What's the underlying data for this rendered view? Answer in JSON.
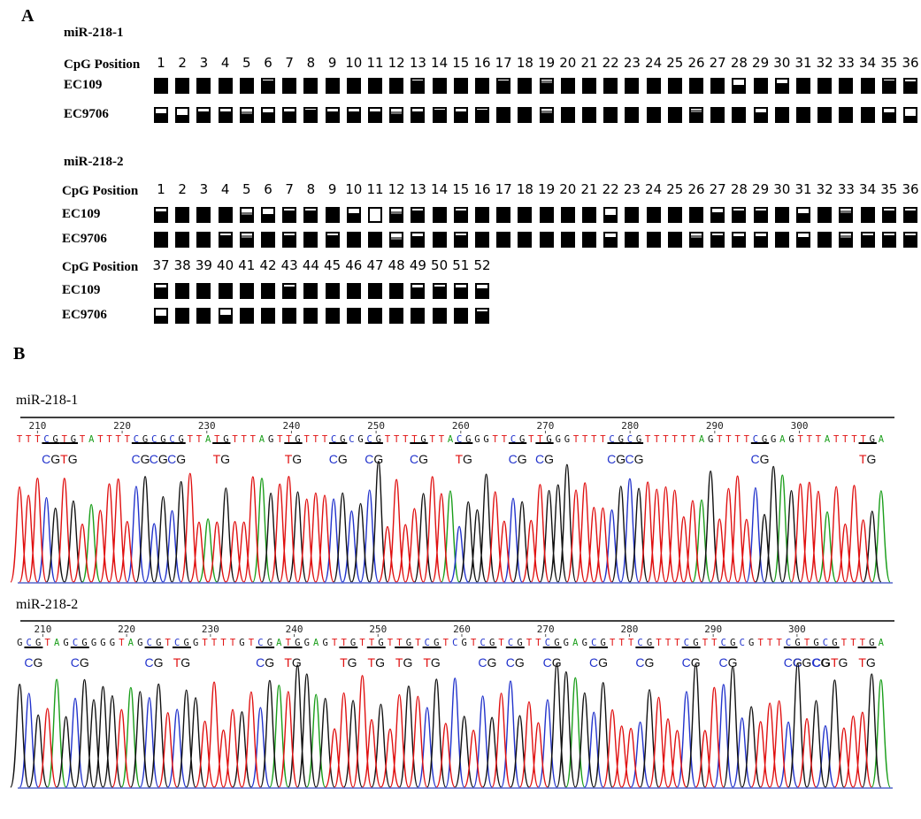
{
  "panel_a": {
    "label": "A",
    "cpg_label": "CpG Position",
    "blocks": [
      {
        "title": "miR-218-1",
        "positions": [
          "1",
          "2",
          "3",
          "4",
          "5",
          "6",
          "7",
          "8",
          "9",
          "10",
          "11",
          "12",
          "13",
          "14",
          "15",
          "16",
          "17",
          "18",
          "19",
          "20",
          "21",
          "22",
          "23",
          "24",
          "25",
          "26",
          "27",
          "28",
          "29",
          "30",
          "31",
          "32",
          "33",
          "34",
          "35",
          "36"
        ],
        "rows": [
          {
            "label": "EC109",
            "methylated_fraction": [
              1,
              1,
              1,
              1,
              1,
              0.92,
              1,
              1,
              1,
              1,
              1,
              1,
              0.92,
              1,
              1,
              1,
              0.92,
              1,
              0.92,
              1,
              1,
              1,
              1,
              1,
              1,
              1,
              1,
              0.65,
              1,
              0.75,
              1,
              1,
              1,
              1,
              0.92,
              0.85
            ]
          },
          {
            "label": "EC9706",
            "methylated_fraction": [
              0.7,
              0.55,
              0.8,
              0.8,
              0.8,
              0.75,
              0.8,
              0.92,
              0.8,
              0.8,
              0.8,
              0.8,
              0.8,
              0.92,
              0.8,
              0.92,
              1,
              1,
              0.9,
              1,
              1,
              1,
              1,
              1,
              1,
              0.92,
              1,
              1,
              0.75,
              1,
              1,
              1,
              1,
              1,
              0.75,
              0.5
            ]
          }
        ]
      },
      {
        "title": "miR-218-2",
        "positions": [
          "1",
          "2",
          "3",
          "4",
          "5",
          "6",
          "7",
          "8",
          "9",
          "10",
          "11",
          "12",
          "13",
          "14",
          "15",
          "16",
          "17",
          "18",
          "19",
          "20",
          "21",
          "22",
          "23",
          "24",
          "25",
          "26",
          "27",
          "28",
          "29",
          "30",
          "31",
          "32",
          "33",
          "34",
          "35",
          "36"
        ],
        "rows": [
          {
            "label": "EC109",
            "methylated_fraction": [
              0.8,
              1,
              1,
              1,
              0.75,
              0.6,
              0.85,
              0.85,
              1,
              0.7,
              0.15,
              0.8,
              0.85,
              1,
              0.85,
              1,
              1,
              1,
              1,
              1,
              1,
              0.55,
              1,
              1,
              1,
              1,
              0.75,
              0.85,
              0.85,
              1,
              0.7,
              1,
              0.85,
              1,
              0.85,
              0.85
            ]
          },
          {
            "label": "EC9706",
            "methylated_fraction": [
              1,
              1,
              1,
              0.85,
              0.85,
              1,
              0.85,
              1,
              0.85,
              1,
              1,
              0.75,
              0.8,
              1,
              0.85,
              1,
              1,
              1,
              1,
              1,
              1,
              0.75,
              1,
              1,
              1,
              0.85,
              0.85,
              0.8,
              0.8,
              1,
              0.75,
              1,
              0.85,
              0.85,
              0.85,
              0.85
            ]
          }
        ]
      },
      {
        "title": "",
        "positions": [
          "37",
          "38",
          "39",
          "40",
          "41",
          "42",
          "43",
          "44",
          "45",
          "46",
          "47",
          "48",
          "49",
          "50",
          "51",
          "52"
        ],
        "rows": [
          {
            "label": "EC109",
            "methylated_fraction": [
              0.8,
              1,
              1,
              1,
              1,
              1,
              0.85,
              1,
              1,
              1,
              1,
              1,
              0.8,
              0.9,
              0.8,
              0.75
            ]
          },
          {
            "label": "EC9706",
            "methylated_fraction": [
              0.55,
              1,
              1,
              0.65,
              1,
              1,
              1,
              1,
              1,
              1,
              1,
              1,
              1,
              1,
              1,
              0.85
            ]
          }
        ]
      }
    ]
  },
  "panel_b": {
    "label": "B",
    "traces": [
      {
        "title": "miR-218-1",
        "positions": [
          "210",
          "220",
          "230",
          "240",
          "250",
          "260",
          "270",
          "280",
          "290",
          "300"
        ],
        "sequence": "TTTCGTGTATTTTCGCGCGTTATGTTTAGTTGTTTCGCGCGTTTTGTTACGGGTTCGTTGGGTTTTCGCGTTTTTTAGTTTTCGGAGTTTATTTTGA",
        "cpg_labels": [
          "CG",
          "TG",
          "CG",
          "CG",
          "CG",
          "TG",
          "TG",
          "CG",
          "CG",
          "CG",
          "TG",
          "CG",
          "CG",
          "CG",
          "CG",
          "CG",
          "TG"
        ]
      },
      {
        "title": "miR-218-2",
        "positions": [
          "210",
          "220",
          "230",
          "240",
          "250",
          "260",
          "270",
          "280",
          "290",
          "300"
        ],
        "sequence": "GCGTAGCGGGGTAGCGTCGGTTTTGTCGATGGAGTTGTTGTTGTCGTCGTCGTCGTTCGGAGCGTTTCGTTTCGTTCGCGTTTCGTGCGTTTGA",
        "cpg_labels": [
          "CG",
          "CG",
          "CG",
          "TG",
          "CG",
          "TG",
          "TG",
          "TG",
          "TG",
          "TG",
          "CG",
          "CG",
          "CG",
          "CG",
          "CG",
          "CG",
          "CG",
          "CG",
          "CGCG",
          "CGTG",
          "TG"
        ]
      }
    ]
  },
  "colors": {
    "A": "#1a9e1a",
    "C": "#2233cc",
    "G": "#111111",
    "T": "#e01010",
    "unmethylated": "#ffffff",
    "methylated": "#000000",
    "partial": "#6e6e6e"
  }
}
